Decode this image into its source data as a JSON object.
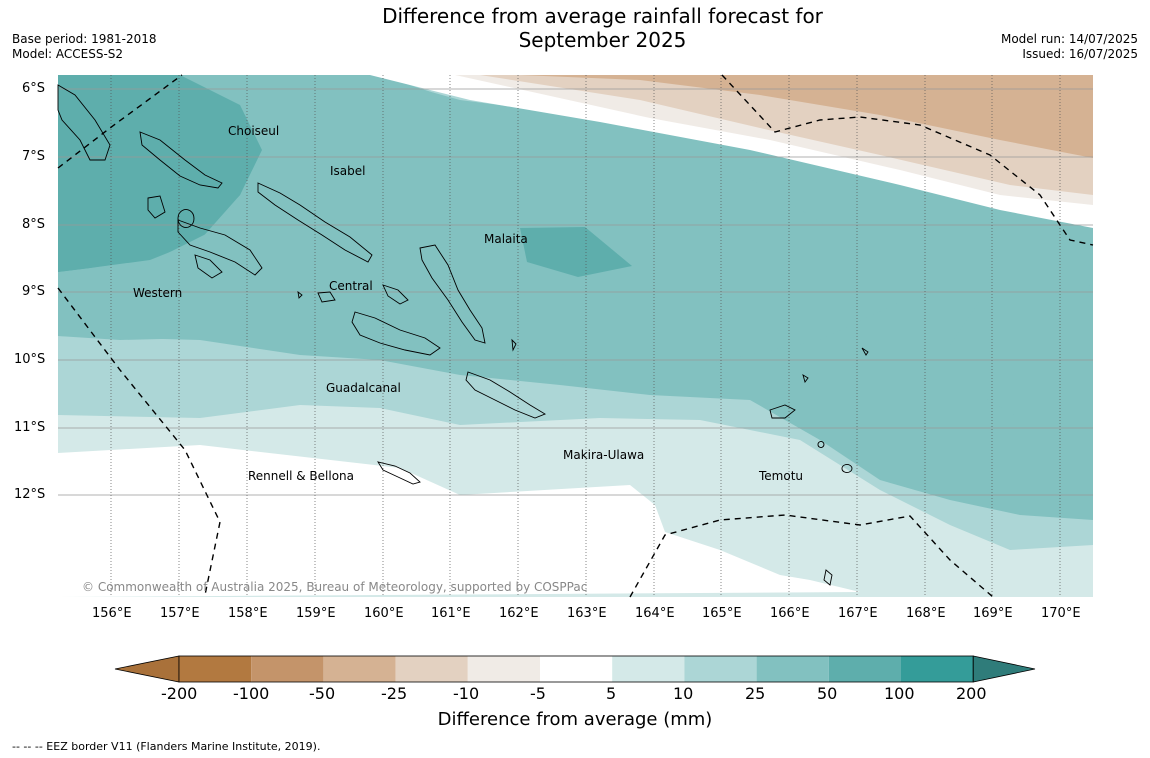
{
  "header": {
    "title_line1": "Difference from average rainfall forecast for",
    "title_line2": "September 2025",
    "base_period": "Base period: 1981-2018",
    "model": "Model: ACCESS-S2",
    "model_run": "Model run: 14/07/2025",
    "issued": "Issued: 16/07/2025"
  },
  "map": {
    "latitude_labels": [
      "6°S",
      "7°S",
      "8°S",
      "9°S",
      "10°S",
      "11°S",
      "12°S"
    ],
    "longitude_labels": [
      "156°E",
      "157°E",
      "158°E",
      "159°E",
      "160°E",
      "161°E",
      "162°E",
      "163°E",
      "164°E",
      "165°E",
      "166°E",
      "167°E",
      "168°E",
      "169°E",
      "170°E"
    ],
    "regions": [
      "Choiseul",
      "Isabel",
      "Malaita",
      "Western",
      "Central",
      "Guadalcanal",
      "Makira-Ulawa",
      "Rennell & Bellona",
      "Temotu"
    ],
    "copyright": "© Commonwealth of Australia 2025, Bureau of Meteorology, supported by COSPPac"
  },
  "colorbar": {
    "labels": [
      "-200",
      "-100",
      "-50",
      "-25",
      "-10",
      "-5",
      "5",
      "10",
      "25",
      "50",
      "100",
      "200"
    ],
    "colors": [
      "#a9713a",
      "#b27940",
      "#c4946a",
      "#d5b293",
      "#e3d1c1",
      "#f0ebe6",
      "#ffffff",
      "#d4e9e8",
      "#acd6d6",
      "#82c1c0",
      "#5eaeac",
      "#349c99",
      "#2f7c7a"
    ],
    "title": "Difference from average (mm)"
  },
  "footnote": "--  --  -- EEZ border V11 (Flanders Marine Institute, 2019)."
}
